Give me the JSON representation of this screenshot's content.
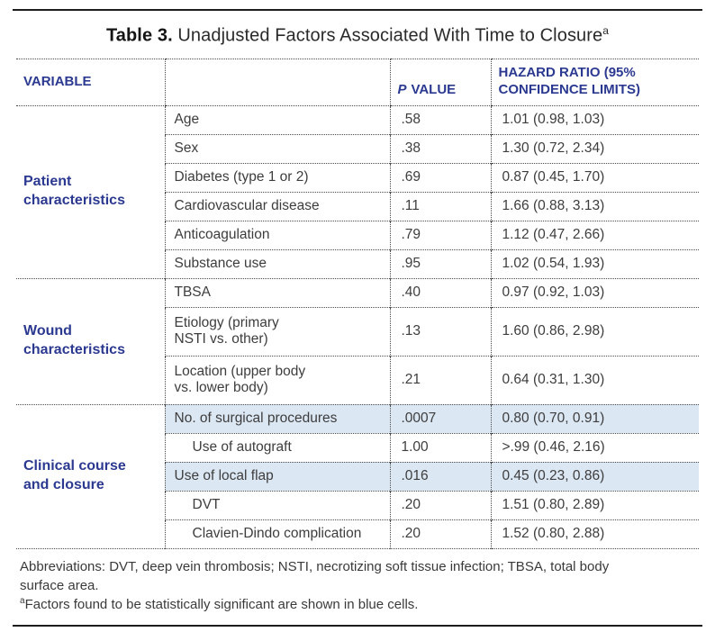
{
  "title": {
    "label": "Table 3.",
    "text": " Unadjusted Factors Associated With Time to Closure",
    "superscript": "a"
  },
  "header": {
    "variable": "VARIABLE",
    "p_value_italic": "P",
    "p_value_rest": "VALUE",
    "hazard_ratio": "HAZARD RATIO (95%\nCONFIDENCE LIMITS)"
  },
  "groups": [
    {
      "label": "Patient\ncharacteristics",
      "rows": [
        {
          "variable": "Age",
          "p": ".58",
          "hr": "1.01 (0.98, 1.03)"
        },
        {
          "variable": "Sex",
          "p": ".38",
          "hr": "1.30 (0.72, 2.34)"
        },
        {
          "variable": "Diabetes (type 1 or 2)",
          "p": ".69",
          "hr": "0.87 (0.45, 1.70)"
        },
        {
          "variable": "Cardiovascular disease",
          "p": ".11",
          "hr": "1.66 (0.88, 3.13)"
        },
        {
          "variable": "Anticoagulation",
          "p": ".79",
          "hr": "1.12 (0.47, 2.66)"
        },
        {
          "variable": "Substance use",
          "p": ".95",
          "hr": "1.02 (0.54, 1.93)"
        }
      ]
    },
    {
      "label": "Wound\ncharacteristics",
      "rows": [
        {
          "variable": "TBSA",
          "p": ".40",
          "hr": "0.97 (0.92, 1.03)"
        },
        {
          "variable": "Etiology (primary\nNSTI vs. other)",
          "p": ".13",
          "hr": "1.60 (0.86, 2.98)"
        },
        {
          "variable": "Location (upper body\nvs. lower body)",
          "p": ".21",
          "hr": "0.64 (0.31, 1.30)"
        }
      ]
    },
    {
      "label": "Clinical course\nand closure",
      "rows": [
        {
          "variable": "No. of surgical procedures",
          "p": ".0007",
          "hr": "0.80 (0.70, 0.91)",
          "highlight": true
        },
        {
          "variable": "Use of autograft",
          "p": "1.00",
          "hr": ">.99 (0.46, 2.16)",
          "indent": true
        },
        {
          "variable": "Use of local flap",
          "p": ".016",
          "hr": "0.45 (0.23, 0.86)",
          "highlight": true
        },
        {
          "variable": "DVT",
          "p": ".20",
          "hr": "1.51 (0.80, 2.89)",
          "indent": true
        },
        {
          "variable": "Clavien-Dindo complication",
          "p": ".20",
          "hr": "1.52 (0.80, 2.88)",
          "indent": true
        }
      ]
    }
  ],
  "footnotes": {
    "abbreviations": "Abbreviations: DVT, deep vein thrombosis; NSTI, necrotizing soft tissue infection; TBSA, total body\nsurface area.",
    "note_a_sup": "a",
    "note_a": "Factors found to be statistically significant are shown in blue cells."
  },
  "colors": {
    "accent_navy": "#2b3990",
    "highlight_blue": "#dce7f4",
    "body_text": "#3d3d3d",
    "rule_black": "#1c1c1c"
  }
}
